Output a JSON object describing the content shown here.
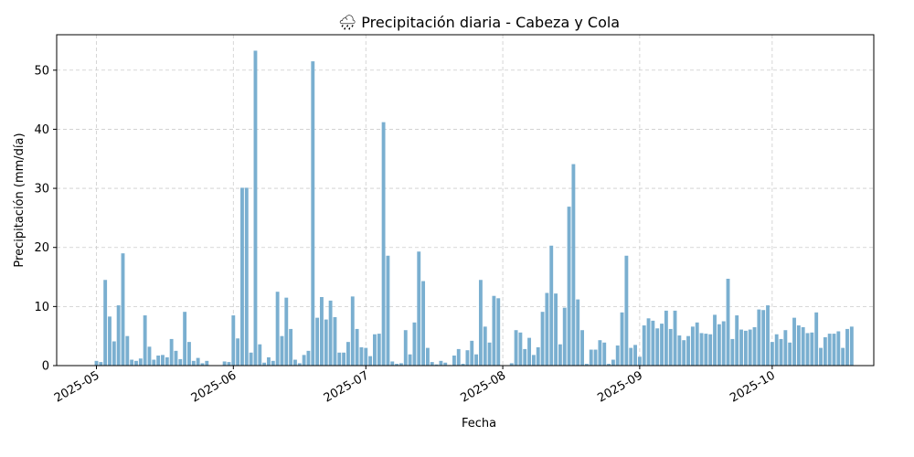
{
  "chart_data": {
    "type": "bar",
    "title": "Precipitación diaria - Cabeza y Cola",
    "title_icon": "🌧",
    "xlabel": "Fecha",
    "ylabel": "Precipitación (mm/día)",
    "x_ticks": [
      "2025-05-01",
      "2025-06-01",
      "2025-07-01",
      "2025-08-01",
      "2025-09-01",
      "2025-10-01"
    ],
    "x_tick_labels": [
      "2025-05",
      "2025-06",
      "2025-07",
      "2025-08",
      "2025-09",
      "2025-10"
    ],
    "xlim": [
      "2025-04-22",
      "2025-10-24"
    ],
    "y_ticks": [
      0,
      10,
      20,
      30,
      40,
      50
    ],
    "ylim": [
      0,
      56
    ],
    "grid": true,
    "bar_color": "#7aafd0",
    "start_date": "2025-05-01",
    "values": [
      0.8,
      0.6,
      14.5,
      8.3,
      4.1,
      10.2,
      19.0,
      5.0,
      1.0,
      0.8,
      1.2,
      8.5,
      3.2,
      1.0,
      1.7,
      1.8,
      1.4,
      4.5,
      2.5,
      1.1,
      9.1,
      4.0,
      0.8,
      1.3,
      0.4,
      0.8,
      0,
      0,
      0,
      0.7,
      0.6,
      8.5,
      4.6,
      30.1,
      30.1,
      2.2,
      53.3,
      3.6,
      0.5,
      1.4,
      0.8,
      12.5,
      5.0,
      11.5,
      6.2,
      1.0,
      0.4,
      1.8,
      2.5,
      51.5,
      8.1,
      11.6,
      7.8,
      11.0,
      8.2,
      2.2,
      2.2,
      4.0,
      11.7,
      6.2,
      3.1,
      3.0,
      1.6,
      5.3,
      5.4,
      41.2,
      18.6,
      0.7,
      0.3,
      0.4,
      6.0,
      1.9,
      7.3,
      19.3,
      14.3,
      3.0,
      0.6,
      0.2,
      0.8,
      0.5,
      0.1,
      1.7,
      2.8,
      0.3,
      2.6,
      4.2,
      1.9,
      14.5,
      6.6,
      3.9,
      11.8,
      11.4,
      0,
      0,
      0.4,
      6.0,
      5.6,
      2.8,
      4.7,
      1.8,
      3.1,
      9.1,
      12.3,
      20.3,
      12.2,
      3.6,
      9.8,
      26.9,
      34.1,
      11.2,
      6.0,
      0.3,
      2.7,
      2.7,
      4.3,
      3.9,
      0.3,
      1.0,
      3.4,
      9.0,
      18.6,
      3.0,
      3.5,
      1.5,
      6.8,
      8.0,
      7.6,
      6.3,
      7.1,
      9.3,
      6.2,
      9.3,
      5.1,
      4.3,
      5.0,
      6.6,
      7.3,
      5.5,
      5.4,
      5.3,
      8.6,
      7.0,
      7.5,
      14.7,
      4.5,
      8.5,
      6.1,
      5.9,
      6.1,
      6.5,
      9.5,
      9.4,
      10.2,
      4.0,
      5.3,
      4.5,
      6.0,
      3.9,
      8.1,
      6.8,
      6.5,
      5.5,
      5.6,
      9.0,
      3.0,
      4.8,
      5.4,
      5.4,
      5.8,
      3.0,
      6.2,
      6.6
    ]
  }
}
